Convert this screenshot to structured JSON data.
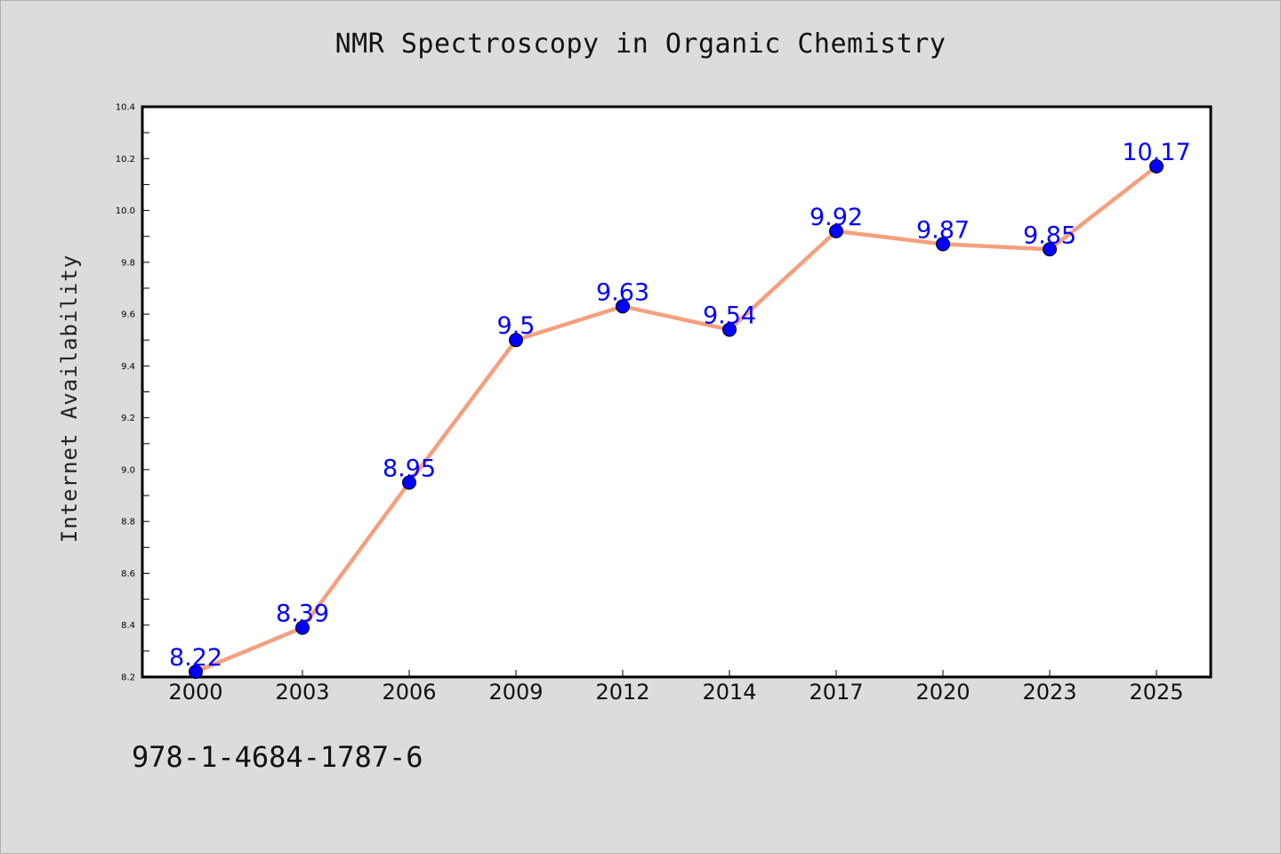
{
  "chart_data": {
    "type": "line",
    "title": "NMR Spectroscopy in Organic Chemistry",
    "xlabel": "",
    "ylabel": "Internet Availability",
    "categories": [
      "2000",
      "2003",
      "2006",
      "2009",
      "2012",
      "2014",
      "2017",
      "2020",
      "2023",
      "2025"
    ],
    "series": [
      {
        "values": [
          8.22,
          8.39,
          8.95,
          9.5,
          9.63,
          9.54,
          9.92,
          9.87,
          9.85,
          10.17
        ],
        "labels": [
          "8.22",
          "8.39",
          "8.95",
          "9.5",
          "9.63",
          "9.54",
          "9.92",
          "9.87",
          "9.85",
          "10.17"
        ],
        "line_color": "#f4a07e",
        "marker_color": "#0000ff",
        "label_color": "#0000ff"
      }
    ],
    "ylim": [
      8.2,
      10.4
    ],
    "yticks": [
      "8.2",
      "8.4",
      "8.6",
      "8.8",
      "9.0",
      "9.2",
      "9.4",
      "9.6",
      "9.8",
      "10.0",
      "10.2",
      "10.4"
    ],
    "grid": false,
    "legend": "none"
  },
  "footer": {
    "isbn": "978-1-4684-1787-6"
  },
  "colors": {
    "background": "#dcdcdc",
    "plot_background": "#ffffff",
    "axes": "#000000"
  }
}
